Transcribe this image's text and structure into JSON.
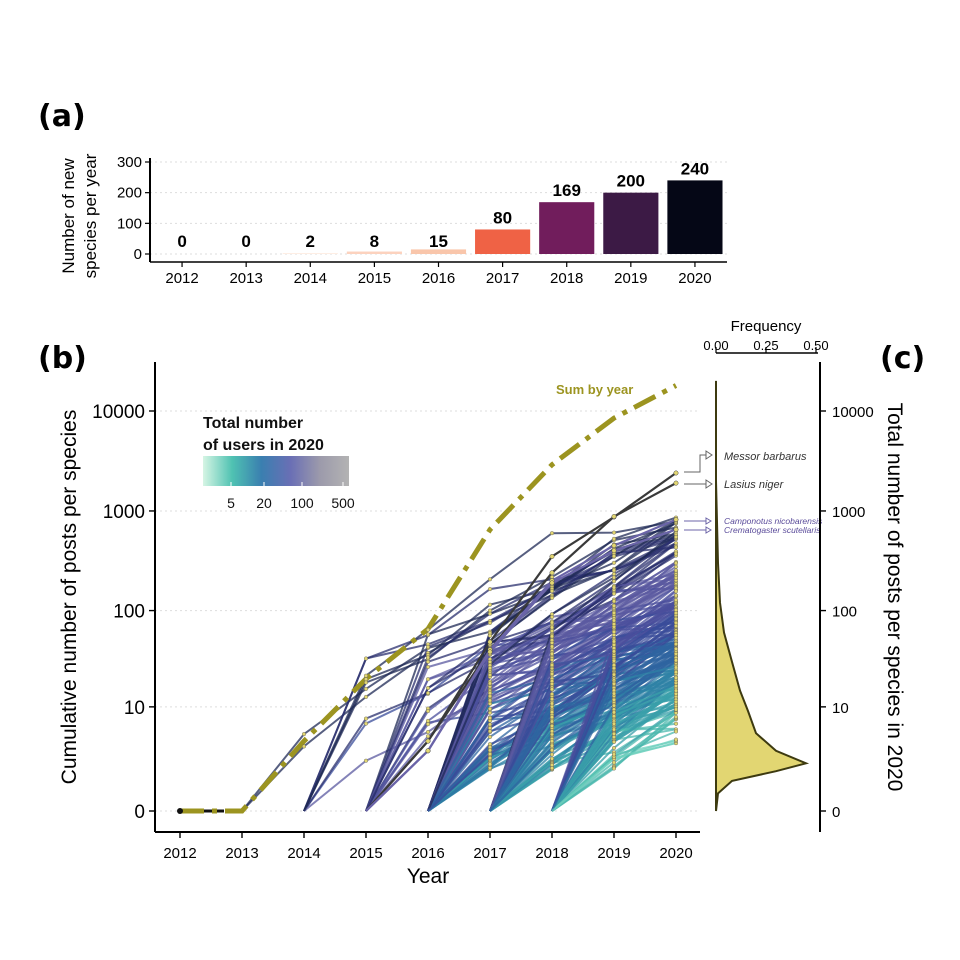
{
  "panels": {
    "a": "(a)",
    "b": "(b)",
    "c": "(c)"
  },
  "chart_data": [
    {
      "type": "bar",
      "panel": "(a)",
      "categories": [
        "2012",
        "2013",
        "2014",
        "2015",
        "2016",
        "2017",
        "2018",
        "2019",
        "2020"
      ],
      "values": [
        0,
        0,
        2,
        8,
        15,
        80,
        169,
        200,
        240
      ],
      "value_labels": [
        "0",
        "0",
        "2",
        "8",
        "15",
        "80",
        "169",
        "200",
        "240"
      ],
      "colors": [
        "#fde9dc",
        "#fde9dc",
        "#fde2d2",
        "#fcd2be",
        "#f9c6ab",
        "#ef6245",
        "#711d5c",
        "#3c1a45",
        "#050716"
      ],
      "ylabel_lines": [
        "Number of new",
        "species per year"
      ],
      "yticks": [
        "0",
        "100",
        "200",
        "300"
      ],
      "ylim": [
        0,
        300
      ],
      "grid": true
    },
    {
      "type": "line",
      "panel": "(b)",
      "xlabel": "Year",
      "ylabel": "Cumulative number of posts per species",
      "x": [
        "2012",
        "2013",
        "2014",
        "2015",
        "2016",
        "2017",
        "2018",
        "2019",
        "2020"
      ],
      "yticks": [
        "0",
        "10",
        "100",
        "1000",
        "10000"
      ],
      "y_scale": "log(1+y)",
      "legend": {
        "title_lines": [
          "Total number",
          "of users in 2020"
        ],
        "ticks": [
          "5",
          "20",
          "100",
          "500"
        ],
        "colors": [
          "#d6f5e4",
          "#4fc2b2",
          "#3a7fb0",
          "#6a6fb5",
          "#9c9aab",
          "#b3b3b3"
        ],
        "placement": "top-left"
      },
      "sum_series": {
        "name": "Sum by year",
        "color": "#9c9420",
        "values": [
          0,
          0,
          4,
          20,
          65,
          650,
          2900,
          8500,
          18000
        ]
      },
      "highlighted_species": [
        {
          "name": "Messor barbarus",
          "values": [
            0,
            0,
            0,
            0,
            4,
            48,
            350,
            870,
            2400
          ]
        },
        {
          "name": "Lasius niger",
          "values": [
            0,
            0,
            0,
            0,
            4,
            40,
            240,
            880,
            1900
          ]
        },
        {
          "name": "Camponotus nicobarensis",
          "values": [
            0,
            0,
            0,
            0,
            3,
            40,
            200,
            450,
            820
          ]
        },
        {
          "name": "Crematogaster scutellaris",
          "values": [
            0,
            0,
            0,
            0,
            3,
            38,
            190,
            400,
            650
          ]
        }
      ]
    },
    {
      "type": "area",
      "panel": "(c)",
      "xlabel": "Frequency",
      "ylabel": "Total number of posts per species in 2020",
      "xticks": [
        "0.00",
        "0.25",
        "0.50"
      ],
      "xlim": [
        0,
        0.5
      ],
      "yticks": [
        "0",
        "10",
        "100",
        "1000",
        "10000"
      ],
      "fill": "#e2d672",
      "density_points": [
        {
          "posts": 0,
          "freq": 0.0
        },
        {
          "posts": 0.5,
          "freq": 0.01
        },
        {
          "posts": 1,
          "freq": 0.08
        },
        {
          "posts": 1.5,
          "freq": 0.3
        },
        {
          "posts": 2,
          "freq": 0.45
        },
        {
          "posts": 3,
          "freq": 0.3
        },
        {
          "posts": 5,
          "freq": 0.2
        },
        {
          "posts": 9,
          "freq": 0.16
        },
        {
          "posts": 15,
          "freq": 0.12
        },
        {
          "posts": 30,
          "freq": 0.08
        },
        {
          "posts": 60,
          "freq": 0.04
        },
        {
          "posts": 120,
          "freq": 0.02
        },
        {
          "posts": 300,
          "freq": 0.01
        },
        {
          "posts": 2000,
          "freq": 0.0
        },
        {
          "posts": 20000,
          "freq": 0.0
        }
      ]
    }
  ]
}
